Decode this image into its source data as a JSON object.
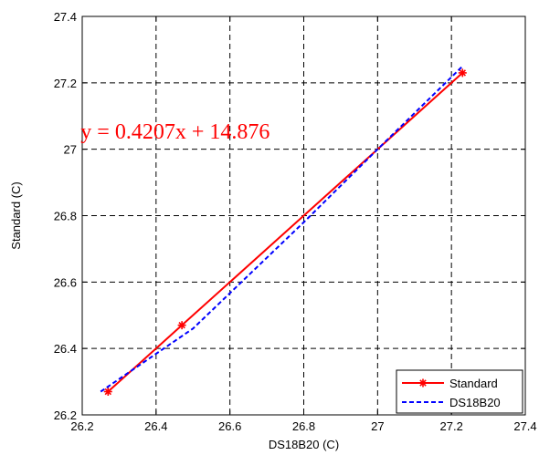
{
  "chart_data": {
    "type": "line",
    "xlabel": "DS18B20 (C)",
    "ylabel": "Standard (C)",
    "xlim": [
      26.2,
      27.4
    ],
    "ylim": [
      26.2,
      27.4
    ],
    "x_ticks": [
      "26.2",
      "26.4",
      "26.6",
      "26.8",
      "27",
      "27.2",
      "27.4"
    ],
    "y_ticks": [
      "26.2",
      "26.4",
      "26.6",
      "26.8",
      "27",
      "27.2",
      "27.4"
    ],
    "grid": true,
    "legend_position": "bottom-right",
    "annotation": {
      "text": "y = 0.4207x + 14.876",
      "x": 26.27,
      "y": 27.01,
      "color": "#ff0000"
    },
    "series": [
      {
        "name": "Standard",
        "color": "#ff0000",
        "style": "solid",
        "marker": "asterisk",
        "x": [
          26.27,
          26.47,
          27.23
        ],
        "y": [
          26.27,
          26.47,
          27.23
        ]
      },
      {
        "name": "DS18B20",
        "color": "#0000ff",
        "style": "dashed",
        "marker": "none",
        "x": [
          26.25,
          26.5,
          26.8,
          27.0,
          27.23
        ],
        "y": [
          26.27,
          26.46,
          26.78,
          27.0,
          27.25
        ]
      }
    ]
  }
}
